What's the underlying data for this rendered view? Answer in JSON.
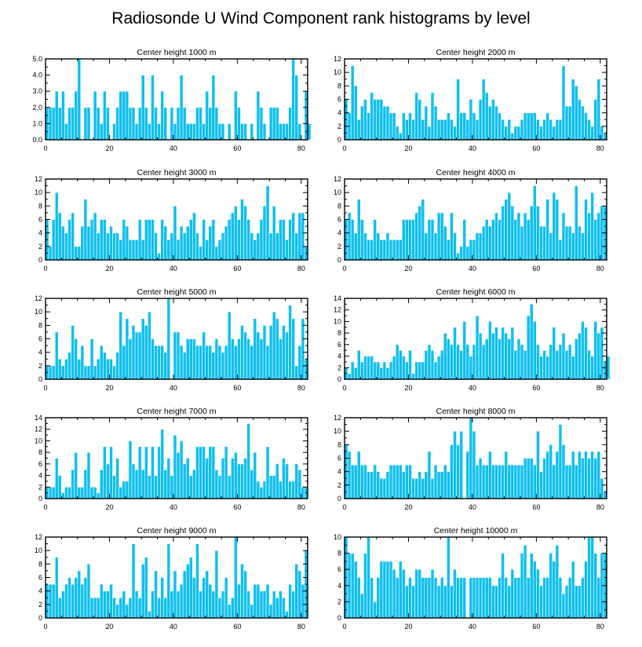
{
  "title": "Radiosonde U Wind Component rank histograms by level",
  "colors": {
    "bar": "#0ebff0",
    "bar_edge": "#ffffff",
    "axis": "#000000"
  },
  "chart_data": [
    {
      "type": "bar",
      "title": "Center height 1000 m",
      "xlim": [
        0,
        82
      ],
      "xticks": [
        0,
        20,
        40,
        60,
        80
      ],
      "ylim": [
        0,
        5
      ],
      "yticks": [
        0,
        1,
        2,
        3,
        4,
        5
      ],
      "ytick_labels": [
        "0.0",
        "1.0",
        "2.0",
        "3.0",
        "4.0",
        "5.0"
      ],
      "values": [
        2,
        2,
        2,
        3,
        2,
        3,
        1,
        2,
        2,
        3,
        5,
        0,
        2,
        2,
        0,
        3,
        2,
        1,
        3,
        2,
        0,
        1,
        2,
        3,
        3,
        3,
        2,
        2,
        1,
        2,
        4,
        2,
        1,
        4,
        2,
        1,
        3,
        2,
        0,
        2,
        1,
        2,
        4,
        2,
        1,
        1,
        1,
        2,
        2,
        1,
        3,
        2,
        4,
        2,
        1,
        1,
        0,
        1,
        0,
        3,
        2,
        1,
        1,
        0,
        1,
        0,
        3,
        2,
        1,
        0,
        2,
        2,
        2,
        1,
        1,
        1,
        2,
        5,
        4,
        1,
        0,
        3,
        1
      ]
    },
    {
      "type": "bar",
      "title": "Center height 2000 m",
      "xlim": [
        0,
        82
      ],
      "xticks": [
        0,
        20,
        40,
        60,
        80
      ],
      "ylim": [
        0,
        12
      ],
      "yticks": [
        0,
        2,
        4,
        6,
        8,
        10,
        12
      ],
      "ytick_labels": [
        "0",
        "2",
        "4",
        "6",
        "8",
        "10",
        "12"
      ],
      "values": [
        6,
        4,
        11,
        8,
        3,
        5,
        6,
        4,
        7,
        6,
        6,
        6,
        5,
        5,
        4,
        4,
        2,
        1,
        4,
        3,
        4,
        3,
        7,
        6,
        3,
        5,
        2,
        7,
        5,
        3,
        3,
        3,
        4,
        3,
        2,
        9,
        4,
        4,
        3,
        6,
        4,
        3,
        6,
        9,
        7,
        5,
        6,
        5,
        4,
        3,
        2,
        3,
        1,
        2,
        2,
        3,
        4,
        4,
        4,
        4,
        3,
        2,
        3,
        4,
        3,
        2,
        3,
        3,
        11,
        5,
        5,
        9,
        8,
        6,
        5,
        4,
        3,
        2,
        6,
        9,
        2,
        1
      ]
    },
    {
      "type": "bar",
      "title": "Center height 3000 m",
      "xlim": [
        0,
        82
      ],
      "xticks": [
        0,
        20,
        40,
        60,
        80
      ],
      "ylim": [
        0,
        12
      ],
      "yticks": [
        0,
        2,
        4,
        6,
        8,
        10,
        12
      ],
      "ytick_labels": [
        "0",
        "2",
        "4",
        "6",
        "8",
        "10",
        "12"
      ],
      "values": [
        6,
        2,
        6,
        10,
        7,
        5,
        4,
        6,
        7,
        2,
        2,
        5,
        9,
        5,
        6,
        7,
        4,
        6,
        6,
        4,
        5,
        4,
        4,
        3,
        6,
        5,
        3,
        3,
        3,
        6,
        3,
        6,
        6,
        6,
        4,
        1,
        6,
        5,
        3,
        4,
        8,
        3,
        5,
        4,
        5,
        6,
        7,
        4,
        2,
        6,
        3,
        5,
        6,
        2,
        3,
        4,
        5,
        6,
        7,
        8,
        6,
        9,
        8,
        6,
        4,
        3,
        4,
        6,
        8,
        11,
        4,
        8,
        4,
        6,
        6,
        3,
        6,
        7,
        4,
        7,
        7,
        2
      ]
    },
    {
      "type": "bar",
      "title": "Center height 4000 m",
      "xlim": [
        0,
        82
      ],
      "xticks": [
        0,
        20,
        40,
        60,
        80
      ],
      "ylim": [
        0,
        12
      ],
      "yticks": [
        0,
        2,
        4,
        6,
        8,
        10,
        12
      ],
      "ytick_labels": [
        "0",
        "2",
        "4",
        "6",
        "8",
        "10",
        "12"
      ],
      "values": [
        6,
        7,
        6,
        4,
        9,
        6,
        4,
        3,
        3,
        6,
        4,
        3,
        3,
        4,
        3,
        3,
        3,
        3,
        6,
        6,
        6,
        6,
        7,
        8,
        9,
        4,
        6,
        6,
        4,
        7,
        7,
        5,
        3,
        7,
        4,
        1,
        2,
        6,
        2,
        3,
        3,
        4,
        4,
        5,
        6,
        5,
        6,
        7,
        6,
        8,
        9,
        10,
        8,
        6,
        7,
        5,
        7,
        6,
        8,
        11,
        8,
        5,
        5,
        9,
        4,
        10,
        9,
        3,
        7,
        5,
        5,
        4,
        11,
        5,
        4,
        9,
        7,
        10,
        6,
        7,
        8,
        8
      ]
    },
    {
      "type": "bar",
      "title": "Center height 5000 m",
      "xlim": [
        0,
        82
      ],
      "xticks": [
        0,
        20,
        40,
        60,
        80
      ],
      "ylim": [
        0,
        12
      ],
      "yticks": [
        0,
        2,
        4,
        6,
        8,
        10,
        12
      ],
      "ytick_labels": [
        "0",
        "2",
        "4",
        "6",
        "8",
        "10",
        "12"
      ],
      "values": [
        2,
        2,
        2,
        7,
        3,
        2,
        3,
        4,
        8,
        6,
        3,
        5,
        2,
        2,
        6,
        2,
        3,
        5,
        4,
        3,
        3,
        2,
        4,
        10,
        5,
        9,
        6,
        8,
        7,
        7,
        9,
        8,
        10,
        6,
        5,
        5,
        5,
        4,
        12,
        0,
        7,
        7,
        5,
        4,
        6,
        6,
        6,
        5,
        5,
        7,
        5,
        5,
        4,
        6,
        5,
        4,
        5,
        10,
        6,
        5,
        6,
        8,
        7,
        6,
        5,
        9,
        7,
        6,
        8,
        5,
        8,
        10,
        9,
        6,
        8,
        7,
        11,
        9,
        2,
        5,
        9,
        3
      ]
    },
    {
      "type": "bar",
      "title": "Center height 6000 m",
      "xlim": [
        0,
        82
      ],
      "xticks": [
        0,
        20,
        40,
        60,
        80
      ],
      "ylim": [
        0,
        14
      ],
      "yticks": [
        0,
        2,
        4,
        6,
        8,
        10,
        12,
        14
      ],
      "ytick_labels": [
        "0",
        "2",
        "4",
        "6",
        "8",
        "10",
        "12",
        "14"
      ],
      "values": [
        2,
        1,
        3,
        2,
        5,
        3,
        4,
        4,
        4,
        3,
        3,
        2,
        3,
        2,
        3,
        4,
        6,
        5,
        4,
        3,
        5,
        1,
        3,
        3,
        3,
        5,
        6,
        5,
        3,
        4,
        5,
        8,
        7,
        6,
        9,
        6,
        5,
        10,
        6,
        4,
        6,
        11,
        8,
        6,
        7,
        10,
        8,
        9,
        7,
        9,
        8,
        7,
        9,
        5,
        7,
        6,
        5,
        11,
        13,
        10,
        6,
        4,
        5,
        4,
        6,
        9,
        5,
        6,
        8,
        5,
        6,
        4,
        7,
        8,
        10,
        9,
        5,
        4,
        10,
        8,
        9,
        3,
        4
      ]
    },
    {
      "type": "bar",
      "title": "Center height 7000 m",
      "xlim": [
        0,
        82
      ],
      "xticks": [
        0,
        20,
        40,
        60,
        80
      ],
      "ylim": [
        0,
        14
      ],
      "yticks": [
        0,
        2,
        4,
        6,
        8,
        10,
        12,
        14
      ],
      "ytick_labels": [
        "0",
        "2",
        "4",
        "6",
        "8",
        "10",
        "12",
        "14"
      ],
      "values": [
        2,
        2,
        2,
        7,
        4,
        1,
        2,
        2,
        5,
        8,
        2,
        2,
        5,
        8,
        2,
        2,
        1,
        5,
        9,
        6,
        9,
        4,
        7,
        2,
        3,
        3,
        10,
        6,
        5,
        9,
        5,
        9,
        4,
        9,
        4,
        9,
        12,
        5,
        7,
        4,
        11,
        8,
        10,
        6,
        7,
        4,
        5,
        9,
        9,
        9,
        7,
        9,
        9,
        5,
        4,
        7,
        9,
        4,
        7,
        8,
        6,
        6,
        7,
        13,
        5,
        8,
        3,
        2,
        3,
        9,
        4,
        4,
        6,
        3,
        7,
        6,
        3,
        3,
        6,
        5,
        2,
        2
      ]
    },
    {
      "type": "bar",
      "title": "Center height 8000 m",
      "xlim": [
        0,
        82
      ],
      "xticks": [
        0,
        20,
        40,
        60,
        80
      ],
      "ylim": [
        0,
        12
      ],
      "yticks": [
        0,
        2,
        4,
        6,
        8,
        10,
        12
      ],
      "ytick_labels": [
        "0",
        "2",
        "4",
        "6",
        "8",
        "10",
        "12"
      ],
      "values": [
        8,
        7,
        5,
        5,
        7,
        5,
        5,
        4,
        4,
        5,
        4,
        3,
        3,
        4,
        5,
        5,
        5,
        5,
        4,
        5,
        5,
        3,
        3,
        4,
        3,
        4,
        7,
        3,
        5,
        4,
        4,
        5,
        4,
        8,
        10,
        8,
        10,
        0,
        7,
        12,
        10,
        5,
        6,
        5,
        5,
        7,
        5,
        5,
        5,
        5,
        7,
        5,
        5,
        5,
        5,
        5,
        6,
        6,
        6,
        5,
        10,
        4,
        6,
        7,
        8,
        5,
        7,
        11,
        8,
        5,
        5,
        7,
        5,
        7,
        6,
        7,
        6,
        7,
        6,
        7,
        3,
        1
      ]
    },
    {
      "type": "bar",
      "title": "Center height 9000 m",
      "xlim": [
        0,
        82
      ],
      "xticks": [
        0,
        20,
        40,
        60,
        80
      ],
      "ylim": [
        0,
        12
      ],
      "yticks": [
        0,
        2,
        4,
        6,
        8,
        10,
        12
      ],
      "ytick_labels": [
        "0",
        "2",
        "4",
        "6",
        "8",
        "10",
        "12"
      ],
      "values": [
        5,
        5,
        5,
        9,
        3,
        4,
        5,
        6,
        5,
        6,
        7,
        5,
        6,
        8,
        3,
        3,
        3,
        5,
        4,
        4,
        5,
        3,
        2,
        3,
        4,
        2,
        3,
        11,
        4,
        3,
        8,
        9,
        1,
        4,
        7,
        3,
        6,
        3,
        11,
        4,
        7,
        4,
        5,
        7,
        8,
        9,
        6,
        11,
        4,
        6,
        7,
        5,
        4,
        10,
        3,
        4,
        6,
        2,
        3,
        12,
        5,
        8,
        7,
        4,
        2,
        5,
        5,
        4,
        4,
        5,
        2,
        4,
        3,
        4,
        3,
        1,
        5,
        4,
        8,
        7,
        5,
        10
      ]
    },
    {
      "type": "bar",
      "title": "Center height 10000 m",
      "xlim": [
        0,
        82
      ],
      "xticks": [
        0,
        20,
        40,
        60,
        80
      ],
      "ylim": [
        0,
        10
      ],
      "yticks": [
        0,
        2,
        4,
        6,
        8,
        10
      ],
      "ytick_labels": [
        "0",
        "2",
        "4",
        "6",
        "8",
        "10"
      ],
      "values": [
        10,
        8,
        8,
        7,
        5,
        3,
        8,
        10,
        5,
        2,
        5,
        7,
        7,
        7,
        7,
        6,
        5,
        7,
        6,
        4,
        5,
        4,
        6,
        6,
        5,
        5,
        5,
        6,
        5,
        4,
        5,
        4,
        10,
        4,
        6,
        5,
        5,
        5,
        0,
        5,
        5,
        5,
        5,
        5,
        5,
        5,
        4,
        4,
        5,
        8,
        5,
        4,
        6,
        5,
        5,
        8,
        9,
        5,
        8,
        7,
        6,
        4,
        5,
        5,
        8,
        7,
        9,
        5,
        3,
        4,
        5,
        7,
        4,
        4,
        5,
        7,
        10,
        10,
        8,
        5,
        8,
        8
      ]
    }
  ]
}
